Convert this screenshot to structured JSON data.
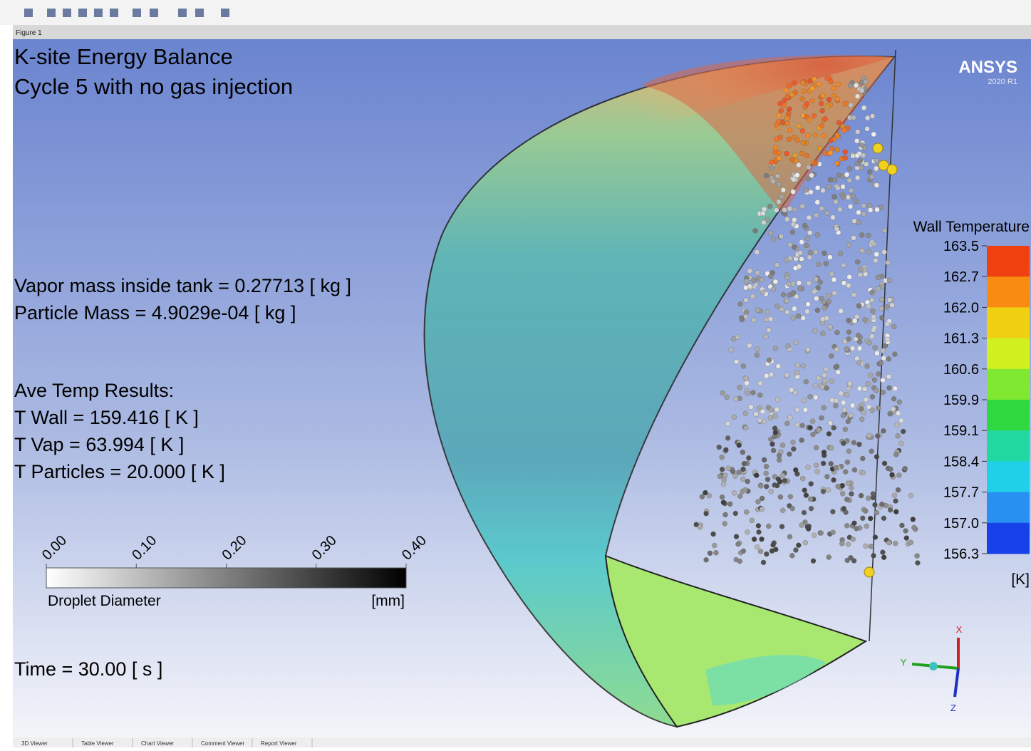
{
  "toolbar": {
    "figure_label": "Figure 1"
  },
  "title": [
    "K-site Energy Balance",
    "Cycle 5 with no gas injection"
  ],
  "brand": {
    "name": "ANSYS",
    "version": "2020 R1"
  },
  "annotations": {
    "mass": [
      "Vapor mass inside tank = 0.27713 [ kg ]",
      "Particle Mass = 4.9029e-04 [ kg ]"
    ],
    "temps": [
      "Ave Temp Results:",
      "T Wall = 159.416 [ K ]",
      "T Vap = 63.994 [ K ]",
      "T Particles = 20.000 [ K ]"
    ],
    "time": "Time = 30.00 [ s ]"
  },
  "droplet_legend": {
    "title": "Droplet Diameter",
    "unit": "[mm]",
    "ticks": [
      "0.00",
      "0.10",
      "0.20",
      "0.30",
      "0.40"
    ]
  },
  "wall_legend": {
    "title": "Wall Temperature",
    "unit": "[K]",
    "ticks": [
      "163.5",
      "162.7",
      "162.0",
      "161.3",
      "160.6",
      "159.9",
      "159.1",
      "158.4",
      "157.7",
      "157.0",
      "156.3"
    ]
  },
  "triad": {
    "x": "X",
    "y": "Y",
    "z": "Z"
  },
  "tabs": [
    "3D Viewer",
    "Table Viewer",
    "Chart Viewer",
    "Comment Viewer",
    "Report Viewer"
  ]
}
